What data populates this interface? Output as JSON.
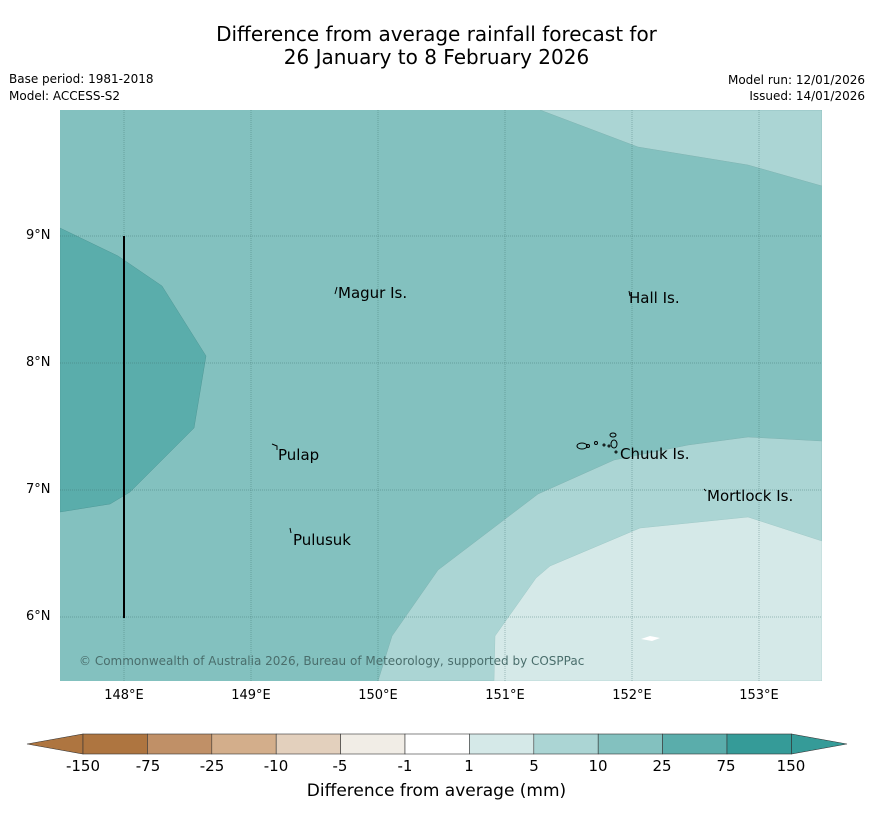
{
  "title": {
    "line1": "Difference from average rainfall forecast for",
    "line2": "26 January to 8 February 2026"
  },
  "meta": {
    "base_period": "Base period: 1981-2018",
    "model": "Model: ACCESS-S2",
    "model_run": "Model run: 12/01/2026",
    "issued": "Issued: 14/01/2026"
  },
  "axes": {
    "latitudes": [
      "9°N",
      "8°N",
      "7°N",
      "6°N"
    ],
    "longitudes": [
      "148°E",
      "149°E",
      "150°E",
      "151°E",
      "152°E",
      "153°E"
    ]
  },
  "places": {
    "magur": "Magur Is.",
    "hall": "Hall Is.",
    "pulap": "Pulap",
    "chuuk": "Chuuk Is.",
    "mortlock": "Mortlock Is.",
    "pulusuk": "Pulusuk"
  },
  "copyright": "© Commonwealth of Australia 2026, Bureau of Meteorology, supported by COSPPac",
  "colorbar": {
    "title": "Difference from average (mm)",
    "labels": [
      "-150",
      "-75",
      "-25",
      "-10",
      "-5",
      "-1",
      "1",
      "5",
      "10",
      "25",
      "75",
      "150"
    ],
    "colors": [
      "#ae7540",
      "#c09067",
      "#d3ae8b",
      "#e3d0bd",
      "#f1ede6",
      "#ffffff",
      "#d5e9e8",
      "#abd5d4",
      "#83c1bf",
      "#5aadab",
      "#359b98"
    ],
    "under_color": "#ae7540",
    "over_color": "#359b98"
  },
  "zone_colors": {
    "base": "#83c1bf",
    "band_75": "#5aadab",
    "band_10": "#abd5d4",
    "band_5": "#d5e9e8"
  }
}
